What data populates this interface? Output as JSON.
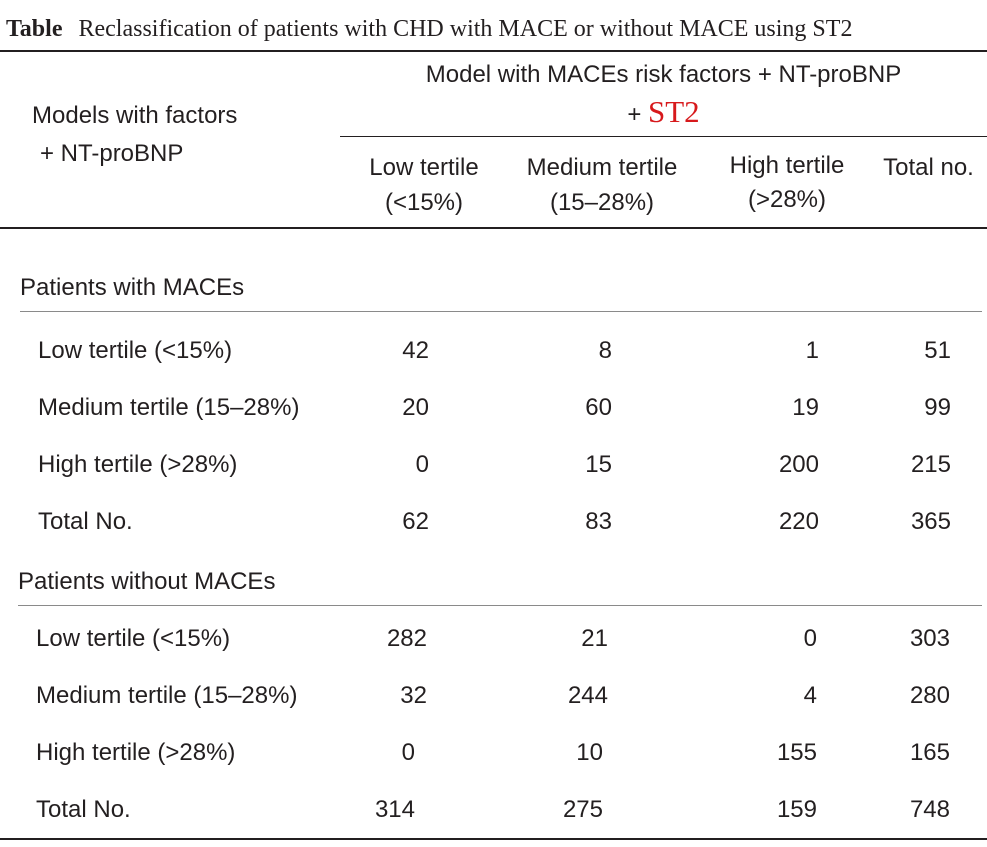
{
  "caption": {
    "label": "Table",
    "text": "Reclassification of patients with CHD with MACE or without MACE using ST2"
  },
  "header": {
    "row_label_line1": "Models with factors",
    "row_label_line2": "+ NT-proBNP",
    "group_line1": "Model with MACEs risk factors + NT-proBNP",
    "group_line2_prefix": "+",
    "group_line2_highlight": "ST2",
    "columns": [
      {
        "line1": "Low tertile",
        "line2": "(<15%)"
      },
      {
        "line1": "Medium tertile",
        "line2": "(15–28%)"
      },
      {
        "line1": "High tertile",
        "line2": "(>28%)"
      },
      {
        "line1": "Total no.",
        "line2": ""
      }
    ]
  },
  "colors": {
    "text": "#231f20",
    "highlight": "#d7191c"
  },
  "sections": [
    {
      "title": "Patients with MACEs",
      "rows": [
        {
          "label": "Low tertile (<15%)",
          "values": [
            "42",
            "8",
            "1",
            "51"
          ]
        },
        {
          "label": "Medium tertile (15–28%)",
          "values": [
            "20",
            "60",
            "19",
            "99"
          ]
        },
        {
          "label": "High tertile (>28%)",
          "values": [
            "0",
            "15",
            "200",
            "215"
          ]
        },
        {
          "label": "Total No.",
          "values": [
            "62",
            "83",
            "220",
            "365"
          ]
        }
      ]
    },
    {
      "title": "Patients without MACEs",
      "rows": [
        {
          "label": "Low tertile (<15%)",
          "values": [
            "282",
            "21",
            "0",
            "303"
          ]
        },
        {
          "label": "Medium tertile (15–28%)",
          "values": [
            "32",
            "244",
            "4",
            "280"
          ]
        },
        {
          "label": "High tertile (>28%)",
          "values": [
            "0",
            "10",
            "155",
            "165"
          ]
        },
        {
          "label": "Total No.",
          "values": [
            "314",
            "275",
            "159",
            "748"
          ]
        }
      ]
    }
  ]
}
